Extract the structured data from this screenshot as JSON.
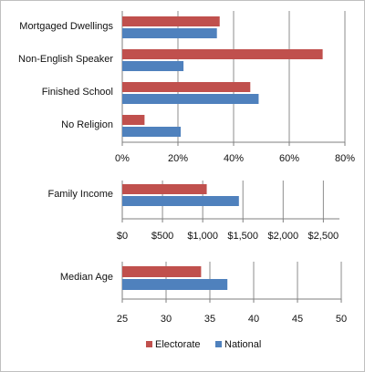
{
  "chart_data": [
    {
      "type": "bar",
      "orientation": "horizontal",
      "categories": [
        "Mortgaged Dwellings",
        "Non-English Speaker",
        "Finished School",
        "No Religion"
      ],
      "series": [
        {
          "name": "Electorate",
          "color": "#c0504d",
          "values": [
            35,
            72,
            46,
            8
          ]
        },
        {
          "name": "National",
          "color": "#4f81bd",
          "values": [
            34,
            22,
            49,
            21
          ]
        }
      ],
      "xlim": [
        0,
        80
      ],
      "ticks": [
        0,
        20,
        40,
        60,
        80
      ],
      "tick_labels": [
        "0%",
        "20%",
        "40%",
        "60%",
        "80%"
      ],
      "grid": "vertical"
    },
    {
      "type": "bar",
      "orientation": "horizontal",
      "categories": [
        "Family Income"
      ],
      "series": [
        {
          "name": "Electorate",
          "color": "#c0504d",
          "values": [
            1050
          ]
        },
        {
          "name": "National",
          "color": "#4f81bd",
          "values": [
            1450
          ]
        }
      ],
      "xlim": [
        0,
        2700
      ],
      "ticks": [
        0,
        500,
        1000,
        1500,
        2000,
        2500
      ],
      "tick_labels": [
        "$0",
        "$500",
        "$1,000",
        "$1,500",
        "$2,000",
        "$2,500"
      ],
      "grid": "vertical"
    },
    {
      "type": "bar",
      "orientation": "horizontal",
      "categories": [
        "Median Age"
      ],
      "series": [
        {
          "name": "Electorate",
          "color": "#c0504d",
          "values": [
            34
          ]
        },
        {
          "name": "National",
          "color": "#4f81bd",
          "values": [
            37
          ]
        }
      ],
      "xlim": [
        25,
        50
      ],
      "ticks": [
        25,
        30,
        35,
        40,
        45,
        50
      ],
      "tick_labels": [
        "25",
        "30",
        "35",
        "40",
        "45",
        "50"
      ],
      "grid": "vertical"
    }
  ],
  "legend": {
    "position": "bottom",
    "items": [
      {
        "label": "Electorate",
        "color": "#c0504d"
      },
      {
        "label": "National",
        "color": "#4f81bd"
      }
    ]
  }
}
